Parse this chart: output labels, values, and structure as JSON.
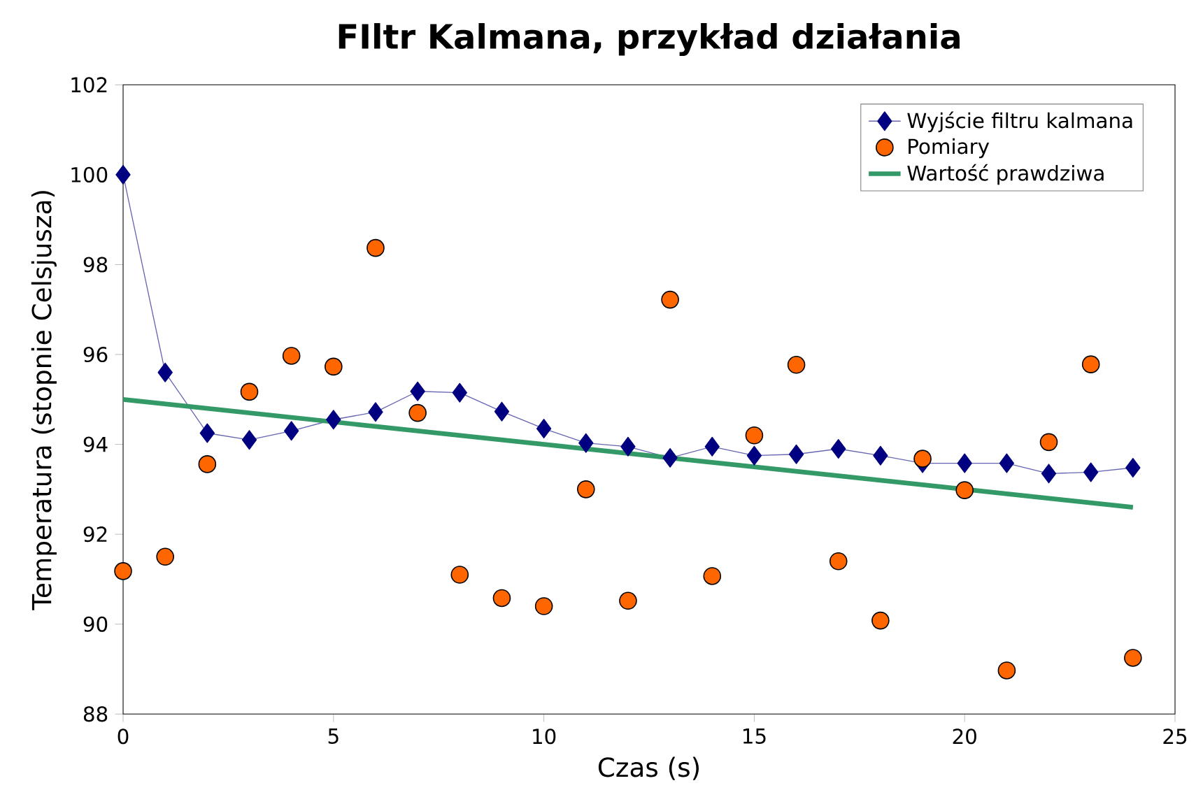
{
  "chart_data": {
    "type": "line",
    "title": "FIltr Kalmana, przykład działania",
    "xlabel": "Czas (s)",
    "ylabel": "Temperatura (stopnie Celsjusza)",
    "xlim": [
      0,
      25
    ],
    "ylim": [
      88,
      102
    ],
    "xticks": [
      0,
      5,
      10,
      15,
      20,
      25
    ],
    "yticks": [
      88,
      90,
      92,
      94,
      96,
      98,
      100,
      102
    ],
    "grid": false,
    "legend": "top right",
    "series": [
      {
        "name": "Wyjście filtru kalmana",
        "color": "#000080",
        "marker": "diamond",
        "x": [
          0,
          1,
          2,
          3,
          4,
          5,
          6,
          7,
          8,
          9,
          10,
          11,
          12,
          13,
          14,
          15,
          16,
          17,
          18,
          19,
          20,
          21,
          22,
          23,
          24
        ],
        "values": [
          100,
          95.6,
          94.25,
          94.1,
          94.3,
          94.55,
          94.72,
          95.18,
          95.15,
          94.73,
          94.35,
          94.03,
          93.95,
          93.7,
          93.95,
          93.75,
          93.78,
          93.9,
          93.75,
          93.58,
          93.58,
          93.58,
          93.35,
          93.38,
          93.48
        ]
      },
      {
        "name": "Pomiary",
        "type": "scatter",
        "color": "#ff6600",
        "marker": "circle",
        "x": [
          0,
          1,
          2,
          3,
          4,
          5,
          6,
          7,
          8,
          9,
          10,
          11,
          12,
          13,
          14,
          15,
          16,
          17,
          18,
          19,
          20,
          21,
          22,
          23,
          24
        ],
        "values": [
          91.18,
          91.5,
          93.56,
          95.17,
          95.97,
          95.73,
          98.37,
          94.7,
          91.1,
          90.58,
          90.4,
          93.0,
          90.52,
          97.22,
          91.07,
          94.2,
          95.77,
          91.4,
          90.08,
          93.68,
          92.98,
          88.97,
          94.05,
          95.78,
          89.25
        ]
      },
      {
        "name": "Wartość prawdziwa",
        "color": "#339966",
        "marker": "none",
        "x": [
          0,
          24
        ],
        "values": [
          95,
          92.6
        ]
      }
    ]
  }
}
